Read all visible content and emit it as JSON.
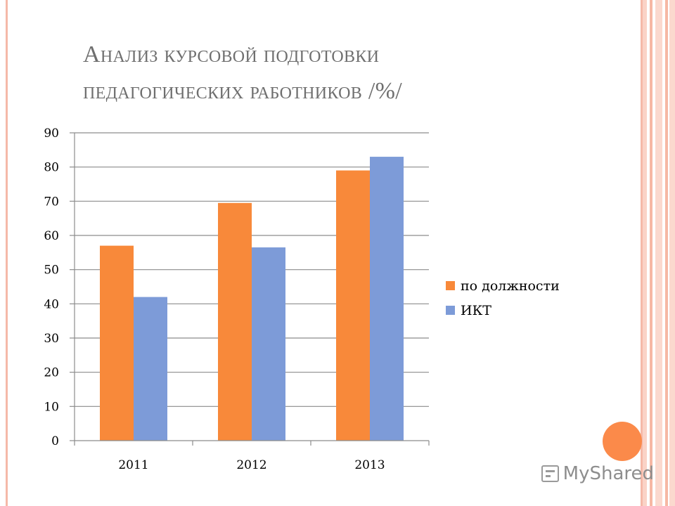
{
  "slide": {
    "title_line1": "Анализ курсовой подготовки",
    "title_line2": "педагогических работников /%/",
    "frame_color": "#f5b9a8",
    "accent_color": "#fb8a4a"
  },
  "watermark": {
    "text": "MyShared",
    "icon": "presentation-board-icon"
  },
  "chart_data": {
    "type": "bar",
    "categories": [
      "2011",
      "2012",
      "2013"
    ],
    "series": [
      {
        "name": "по должности",
        "values": [
          57,
          69.5,
          79
        ],
        "color": "#f8893a"
      },
      {
        "name": "ИКТ",
        "values": [
          42,
          56.5,
          83
        ],
        "color": "#7d9bd8"
      }
    ],
    "title": "",
    "xlabel": "",
    "ylabel": "",
    "ylim": [
      0,
      90
    ],
    "yticks": [
      0,
      10,
      20,
      30,
      40,
      50,
      60,
      70,
      80,
      90
    ],
    "grid": true,
    "legend_position": "right"
  }
}
